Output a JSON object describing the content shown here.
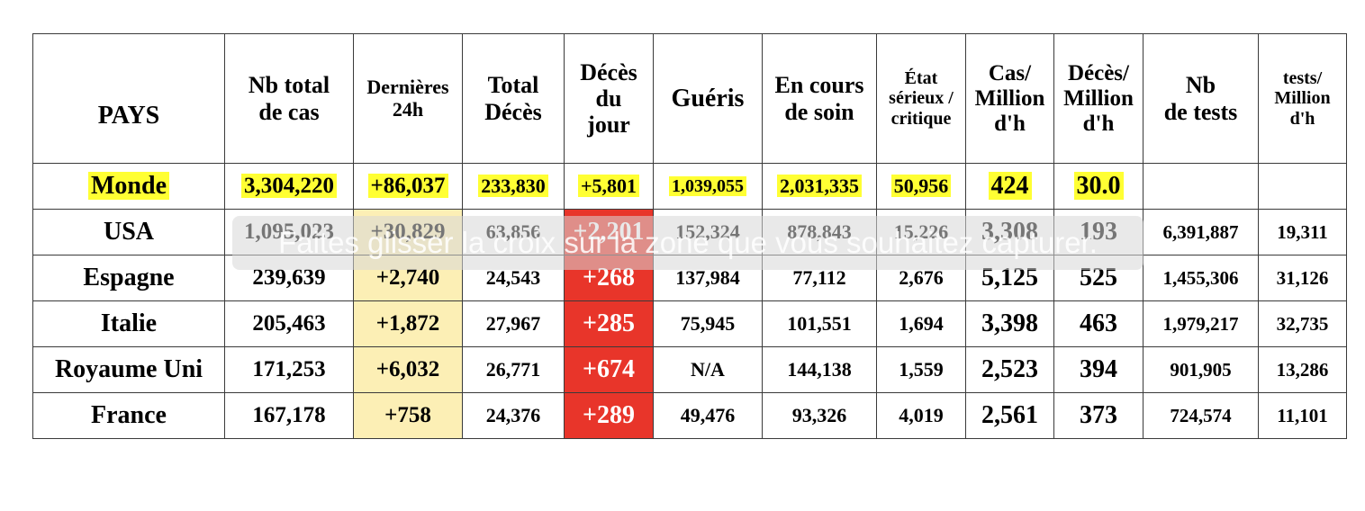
{
  "columns": [
    "PAYS",
    "Nb total\nde cas",
    "Dernières\n24h",
    "Total\nDécès",
    "Décès\ndu\njour",
    "Guéris",
    "En cours\nde soin",
    "État\nsérieux /\ncritique",
    "Cas/\nMillion\nd'h",
    "Décès/\nMillion\nd'h",
    "Nb\nde tests",
    "tests/\nMillion\nd'h"
  ],
  "world_row": [
    "Monde",
    "3,304,220",
    "+86,037",
    "233,830",
    "+5,801",
    "1,039,055",
    "2,031,335",
    "50,956",
    "424",
    "30.0",
    "",
    ""
  ],
  "rows": [
    [
      "USA",
      "1,095,023",
      "+30,829",
      "63,856",
      "+2,201",
      "152,324",
      "878,843",
      "15,226",
      "3,308",
      "193",
      "6,391,887",
      "19,311"
    ],
    [
      "Espagne",
      "239,639",
      "+2,740",
      "24,543",
      "+268",
      "137,984",
      "77,112",
      "2,676",
      "5,125",
      "525",
      "1,455,306",
      "31,126"
    ],
    [
      "Italie",
      "205,463",
      "+1,872",
      "27,967",
      "+285",
      "75,945",
      "101,551",
      "1,694",
      "3,398",
      "463",
      "1,979,217",
      "32,735"
    ],
    [
      "Royaume Uni",
      "171,253",
      "+6,032",
      "26,771",
      "+674",
      "N/A",
      "144,138",
      "1,559",
      "2,523",
      "394",
      "901,905",
      "13,286"
    ],
    [
      "France",
      "167,178",
      "+758",
      "24,376",
      "+289",
      "49,476",
      "93,326",
      "4,019",
      "2,561",
      "373",
      "724,574",
      "11,101"
    ]
  ],
  "colors": {
    "world_highlight": "#ffff33",
    "last24h_column": "#fcefb5",
    "deaths_today_column": "#e8352a",
    "deaths_today_text": "#ffffff",
    "grid_lines": "#3a3a3a"
  },
  "overlay": {
    "message": "Faites glisser la croix sur la zone que vous souhaitez capturer."
  }
}
